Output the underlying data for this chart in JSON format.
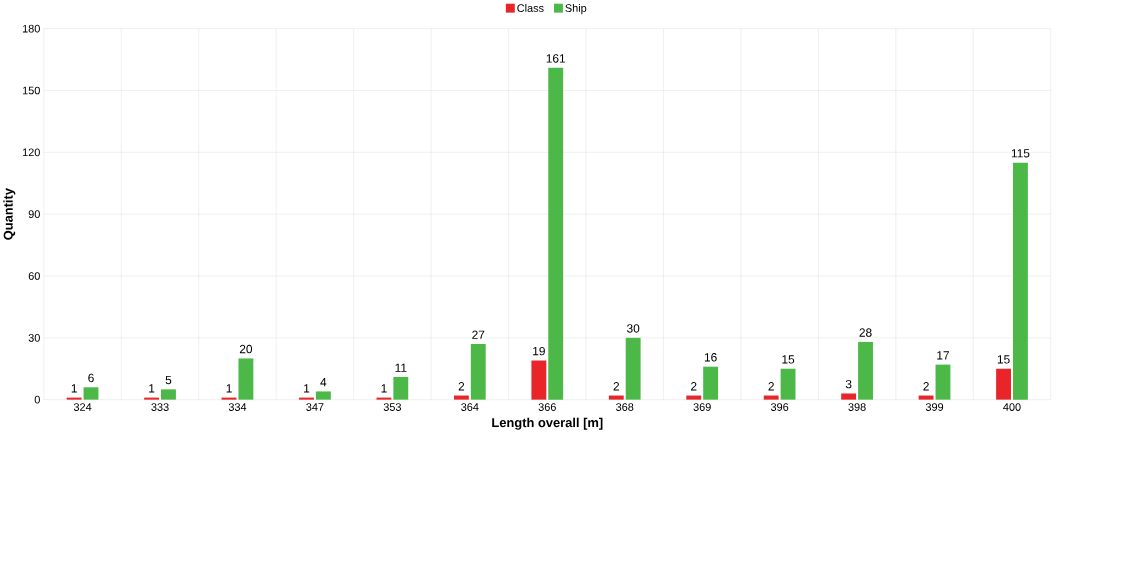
{
  "chart_data": {
    "type": "bar",
    "xlabel": "Length overall [m]",
    "ylabel": "Quantity",
    "categories": [
      "324",
      "333",
      "334",
      "347",
      "353",
      "364",
      "366",
      "368",
      "369",
      "396",
      "398",
      "399",
      "400"
    ],
    "series": [
      {
        "name": "Class",
        "color": "#e8262a",
        "values": [
          1,
          1,
          1,
          1,
          1,
          2,
          19,
          2,
          2,
          2,
          3,
          2,
          15
        ]
      },
      {
        "name": "Ship",
        "color": "#4cb848",
        "values": [
          6,
          5,
          20,
          4,
          11,
          27,
          161,
          30,
          16,
          15,
          28,
          17,
          115
        ]
      }
    ],
    "ylim": [
      0,
      180
    ],
    "yticks": [
      0,
      30,
      60,
      90,
      120,
      150,
      180
    ],
    "grid": true,
    "legend": "top",
    "data_labels": true
  }
}
